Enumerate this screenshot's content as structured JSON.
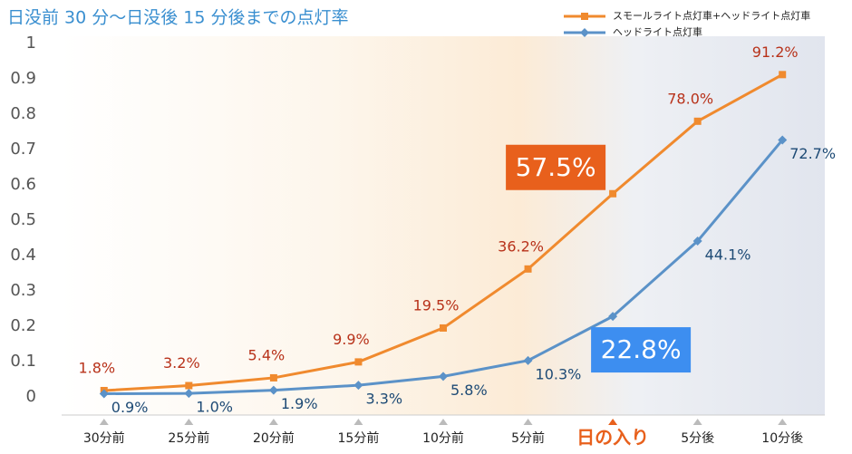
{
  "chart_data": {
    "type": "line",
    "title": "日没前 30 分〜日没後 15 分後までの点灯率",
    "categories": [
      "30分前",
      "25分前",
      "20分前",
      "15分前",
      "10分前",
      "5分前",
      "日の入り",
      "5分後",
      "10分後"
    ],
    "ylim": [
      0,
      1
    ],
    "yticks": [
      0,
      0.1,
      0.2,
      0.3,
      0.4,
      0.5,
      0.6,
      0.7,
      0.8,
      0.9,
      1
    ],
    "callout_index": 6,
    "highlight_color": "#e8601c",
    "series": [
      {
        "name": "スモールライト点灯車+ヘッドライト点灯車",
        "color": "#f08a2e",
        "marker": "square",
        "label_color": "#b8321a",
        "callout_color": "#e8601c",
        "values": [
          0.018,
          0.032,
          0.054,
          0.099,
          0.195,
          0.362,
          0.575,
          0.78,
          0.912
        ],
        "value_labels": [
          "1.8%",
          "3.2%",
          "5.4%",
          "9.9%",
          "19.5%",
          "36.2%",
          "57.5%",
          "78.0%",
          "91.2%"
        ]
      },
      {
        "name": "ヘッドライト点灯車",
        "color": "#5b92c8",
        "marker": "diamond",
        "label_color": "#1d4a75",
        "callout_color": "#3d8ef0",
        "values": [
          0.009,
          0.01,
          0.019,
          0.033,
          0.058,
          0.103,
          0.228,
          0.441,
          0.727
        ],
        "value_labels": [
          "0.9%",
          "1.0%",
          "1.9%",
          "3.3%",
          "5.8%",
          "10.3%",
          "22.8%",
          "44.1%",
          "72.7%"
        ]
      }
    ]
  }
}
